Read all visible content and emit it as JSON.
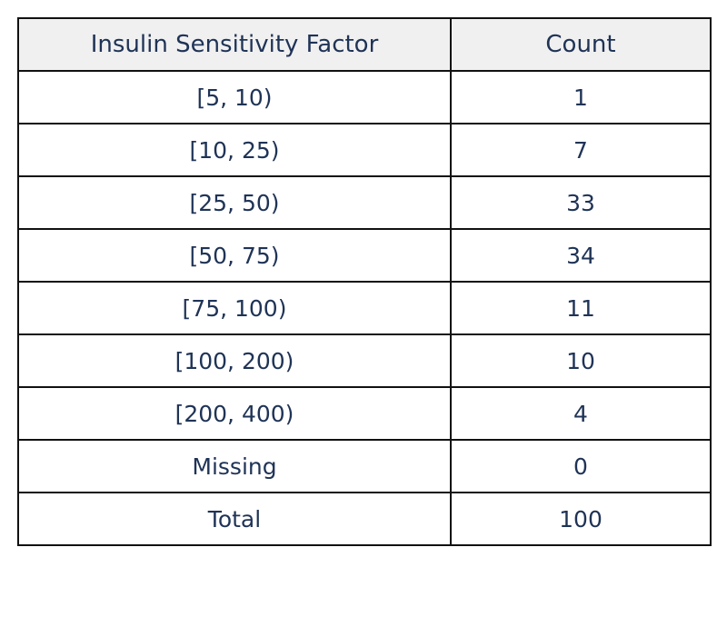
{
  "table": {
    "headers": [
      "Insulin Sensitivity Factor",
      "Count"
    ],
    "rows": [
      [
        "[5, 10)",
        "1"
      ],
      [
        "[10, 25)",
        "7"
      ],
      [
        "[25, 50)",
        "33"
      ],
      [
        "[50, 75)",
        "34"
      ],
      [
        "[75, 100)",
        "11"
      ],
      [
        "[100, 200)",
        "10"
      ],
      [
        "[200, 400)",
        "4"
      ],
      [
        "Missing",
        "0"
      ],
      [
        "Total",
        "100"
      ]
    ]
  },
  "colors": {
    "text": "#1f3356",
    "header_background": "#f0f0f0",
    "border": "#111111"
  }
}
